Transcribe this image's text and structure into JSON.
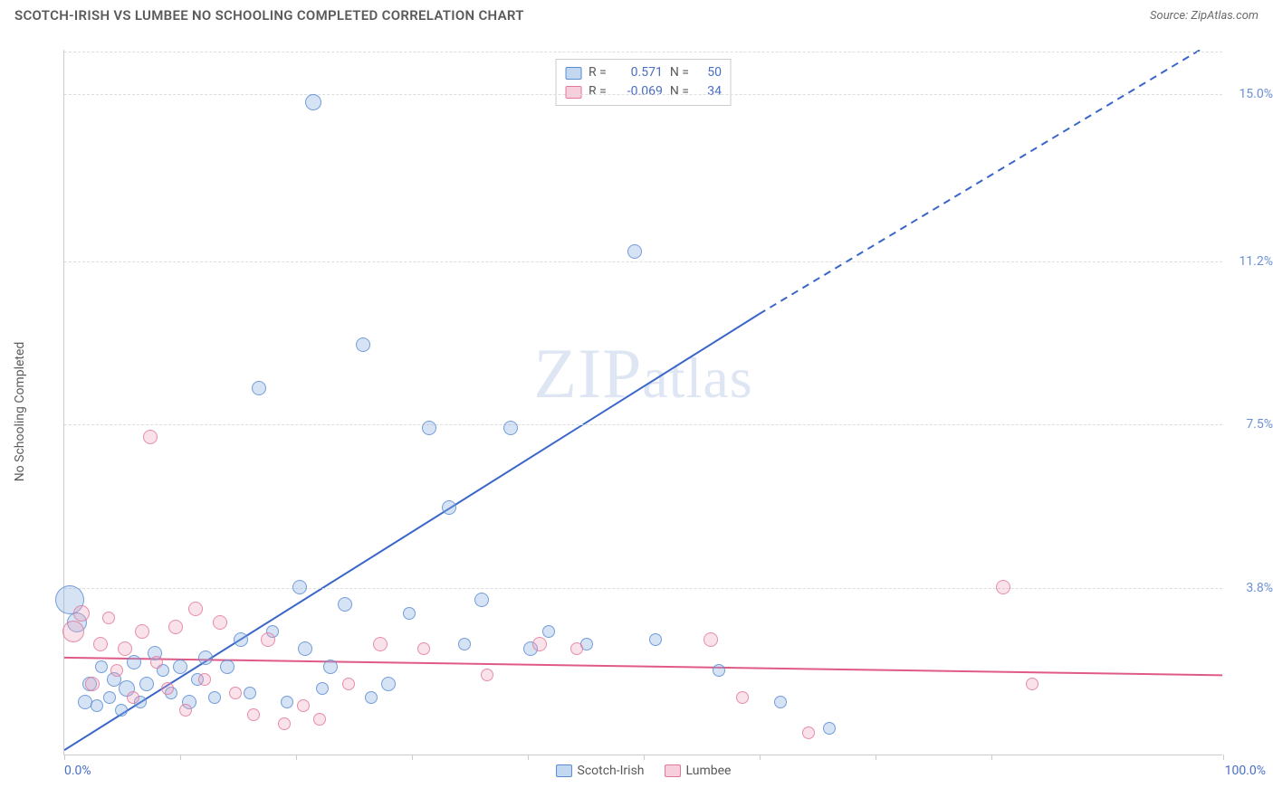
{
  "header": {
    "title": "SCOTCH-IRISH VS LUMBEE NO SCHOOLING COMPLETED CORRELATION CHART",
    "source": "Source: ZipAtlas.com"
  },
  "chart": {
    "type": "scatter",
    "y_axis_label": "No Schooling Completed",
    "watermark": "ZIPatlas",
    "background_color": "#ffffff",
    "grid_color": "#dddddd",
    "axis_color": "#cccccc",
    "xlim": [
      0,
      100
    ],
    "ylim": [
      0,
      16
    ],
    "x_ticks": [
      0,
      10,
      20,
      30,
      40,
      50,
      60,
      70,
      80,
      100
    ],
    "x_tick_labels": {
      "left": "0.0%",
      "right": "100.0%"
    },
    "y_gridlines": [
      3.8,
      7.5,
      11.2,
      15.0
    ],
    "y_tick_labels": [
      "3.8%",
      "7.5%",
      "11.2%",
      "15.0%"
    ],
    "series": [
      {
        "name": "Scotch-Irish",
        "color_fill": "rgba(135,175,225,0.35)",
        "color_stroke": "#5a8cd2",
        "R": "0.571",
        "N": "50",
        "trend": {
          "color": "#3a66c9",
          "width": 2,
          "x1": 0,
          "y1": 0.1,
          "x2": 60,
          "y2": 10.0,
          "dash_from_x": 60,
          "x3": 100,
          "y3": 16.3
        },
        "points": [
          {
            "x": 0.5,
            "y": 3.5,
            "r": 16
          },
          {
            "x": 1.1,
            "y": 3.0,
            "r": 11
          },
          {
            "x": 1.8,
            "y": 1.2,
            "r": 8
          },
          {
            "x": 2.2,
            "y": 1.6,
            "r": 8
          },
          {
            "x": 2.8,
            "y": 1.1,
            "r": 7
          },
          {
            "x": 3.2,
            "y": 2.0,
            "r": 7
          },
          {
            "x": 3.9,
            "y": 1.3,
            "r": 7
          },
          {
            "x": 4.3,
            "y": 1.7,
            "r": 8
          },
          {
            "x": 4.9,
            "y": 1.0,
            "r": 7
          },
          {
            "x": 5.4,
            "y": 1.5,
            "r": 9
          },
          {
            "x": 6.0,
            "y": 2.1,
            "r": 8
          },
          {
            "x": 6.6,
            "y": 1.2,
            "r": 7
          },
          {
            "x": 7.1,
            "y": 1.6,
            "r": 8
          },
          {
            "x": 7.8,
            "y": 2.3,
            "r": 8
          },
          {
            "x": 8.5,
            "y": 1.9,
            "r": 7
          },
          {
            "x": 9.2,
            "y": 1.4,
            "r": 7
          },
          {
            "x": 10.0,
            "y": 2.0,
            "r": 8
          },
          {
            "x": 10.8,
            "y": 1.2,
            "r": 8
          },
          {
            "x": 11.5,
            "y": 1.7,
            "r": 7
          },
          {
            "x": 12.2,
            "y": 2.2,
            "r": 8
          },
          {
            "x": 13.0,
            "y": 1.3,
            "r": 7
          },
          {
            "x": 14.1,
            "y": 2.0,
            "r": 8
          },
          {
            "x": 15.2,
            "y": 2.6,
            "r": 8
          },
          {
            "x": 16.0,
            "y": 1.4,
            "r": 7
          },
          {
            "x": 16.8,
            "y": 8.3,
            "r": 8
          },
          {
            "x": 18.0,
            "y": 2.8,
            "r": 7
          },
          {
            "x": 19.2,
            "y": 1.2,
            "r": 7
          },
          {
            "x": 20.3,
            "y": 3.8,
            "r": 8
          },
          {
            "x": 20.8,
            "y": 2.4,
            "r": 8
          },
          {
            "x": 21.5,
            "y": 14.8,
            "r": 9
          },
          {
            "x": 22.3,
            "y": 1.5,
            "r": 7
          },
          {
            "x": 23.0,
            "y": 2.0,
            "r": 8
          },
          {
            "x": 24.2,
            "y": 3.4,
            "r": 8
          },
          {
            "x": 25.8,
            "y": 9.3,
            "r": 8
          },
          {
            "x": 26.5,
            "y": 1.3,
            "r": 7
          },
          {
            "x": 28.0,
            "y": 1.6,
            "r": 8
          },
          {
            "x": 29.8,
            "y": 3.2,
            "r": 7
          },
          {
            "x": 31.5,
            "y": 7.4,
            "r": 8
          },
          {
            "x": 33.2,
            "y": 5.6,
            "r": 8
          },
          {
            "x": 34.5,
            "y": 2.5,
            "r": 7
          },
          {
            "x": 36.0,
            "y": 3.5,
            "r": 8
          },
          {
            "x": 38.5,
            "y": 7.4,
            "r": 8
          },
          {
            "x": 40.2,
            "y": 2.4,
            "r": 8
          },
          {
            "x": 41.8,
            "y": 2.8,
            "r": 7
          },
          {
            "x": 45.1,
            "y": 2.5,
            "r": 7
          },
          {
            "x": 49.2,
            "y": 11.4,
            "r": 8
          },
          {
            "x": 51.0,
            "y": 2.6,
            "r": 7
          },
          {
            "x": 56.5,
            "y": 1.9,
            "r": 7
          },
          {
            "x": 61.8,
            "y": 1.2,
            "r": 7
          },
          {
            "x": 66.0,
            "y": 0.6,
            "r": 7
          }
        ]
      },
      {
        "name": "Lumbee",
        "color_fill": "rgba(240,160,185,0.30)",
        "color_stroke": "#e1789b",
        "R": "-0.069",
        "N": "34",
        "trend": {
          "color": "#e05a88",
          "width": 2,
          "x1": 0,
          "y1": 2.2,
          "x2": 100,
          "y2": 1.8
        },
        "points": [
          {
            "x": 0.8,
            "y": 2.8,
            "r": 12
          },
          {
            "x": 1.5,
            "y": 3.2,
            "r": 9
          },
          {
            "x": 2.4,
            "y": 1.6,
            "r": 8
          },
          {
            "x": 3.1,
            "y": 2.5,
            "r": 8
          },
          {
            "x": 3.8,
            "y": 3.1,
            "r": 7
          },
          {
            "x": 4.5,
            "y": 1.9,
            "r": 7
          },
          {
            "x": 5.2,
            "y": 2.4,
            "r": 8
          },
          {
            "x": 5.9,
            "y": 1.3,
            "r": 7
          },
          {
            "x": 6.7,
            "y": 2.8,
            "r": 8
          },
          {
            "x": 7.4,
            "y": 7.2,
            "r": 8
          },
          {
            "x": 8.0,
            "y": 2.1,
            "r": 7
          },
          {
            "x": 8.9,
            "y": 1.5,
            "r": 7
          },
          {
            "x": 9.6,
            "y": 2.9,
            "r": 8
          },
          {
            "x": 10.5,
            "y": 1.0,
            "r": 7
          },
          {
            "x": 11.3,
            "y": 3.3,
            "r": 8
          },
          {
            "x": 12.1,
            "y": 1.7,
            "r": 7
          },
          {
            "x": 13.4,
            "y": 3.0,
            "r": 8
          },
          {
            "x": 14.8,
            "y": 1.4,
            "r": 7
          },
          {
            "x": 16.3,
            "y": 0.9,
            "r": 7
          },
          {
            "x": 17.6,
            "y": 2.6,
            "r": 8
          },
          {
            "x": 19.0,
            "y": 0.7,
            "r": 7
          },
          {
            "x": 20.6,
            "y": 1.1,
            "r": 7
          },
          {
            "x": 22.0,
            "y": 0.8,
            "r": 7
          },
          {
            "x": 24.5,
            "y": 1.6,
            "r": 7
          },
          {
            "x": 27.3,
            "y": 2.5,
            "r": 8
          },
          {
            "x": 31.0,
            "y": 2.4,
            "r": 7
          },
          {
            "x": 36.5,
            "y": 1.8,
            "r": 7
          },
          {
            "x": 41.0,
            "y": 2.5,
            "r": 8
          },
          {
            "x": 44.2,
            "y": 2.4,
            "r": 7
          },
          {
            "x": 55.8,
            "y": 2.6,
            "r": 8
          },
          {
            "x": 58.5,
            "y": 1.3,
            "r": 7
          },
          {
            "x": 64.2,
            "y": 0.5,
            "r": 7
          },
          {
            "x": 81.0,
            "y": 3.8,
            "r": 8
          },
          {
            "x": 83.5,
            "y": 1.6,
            "r": 7
          }
        ]
      }
    ],
    "bottom_legend": [
      {
        "swatch": "blue",
        "label": "Scotch-Irish"
      },
      {
        "swatch": "pink",
        "label": "Lumbee"
      }
    ]
  }
}
